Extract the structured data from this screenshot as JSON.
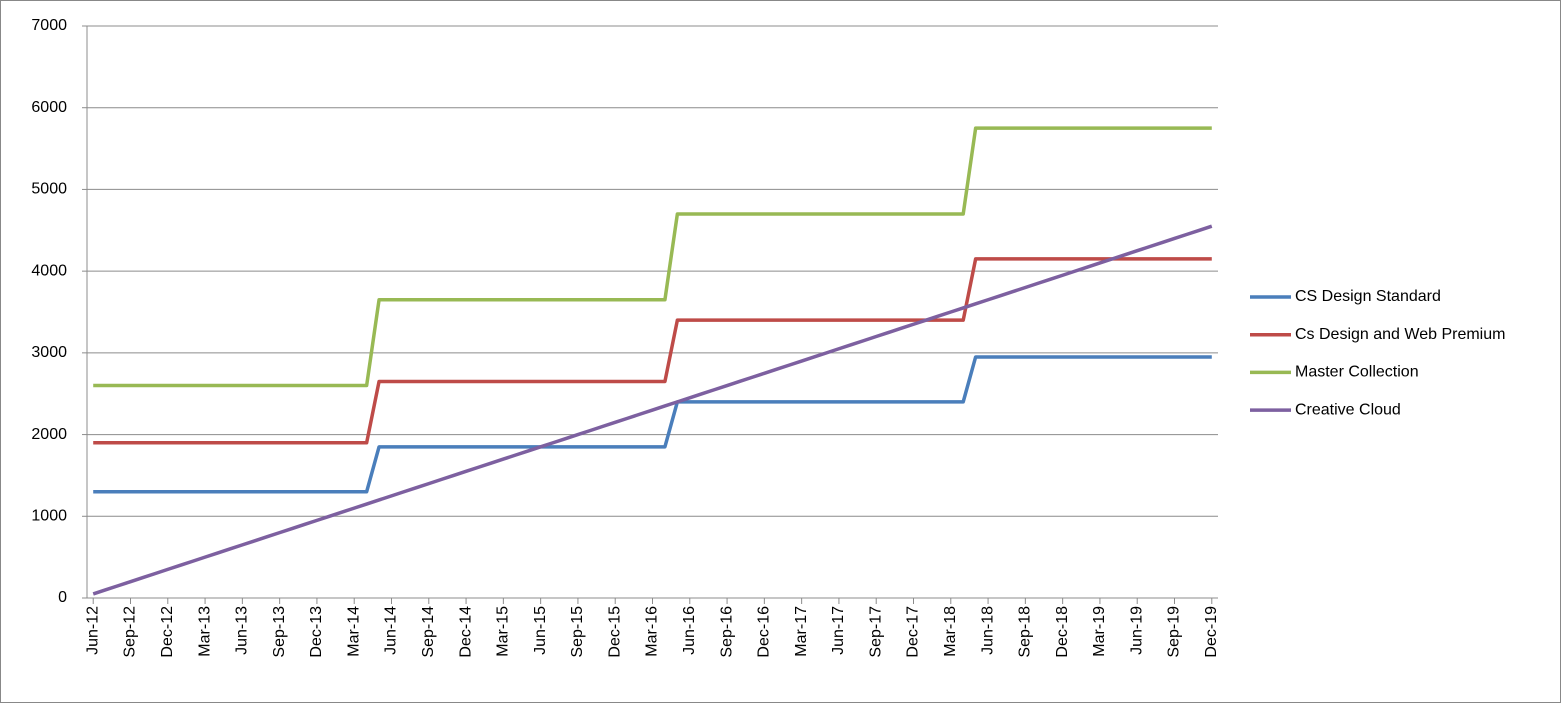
{
  "chart_data": {
    "type": "line",
    "categories": [
      "Jun-12",
      null,
      null,
      "Sep-12",
      null,
      null,
      "Dec-12",
      null,
      null,
      "Mar-13",
      null,
      null,
      "Jun-13",
      null,
      null,
      "Sep-13",
      null,
      null,
      "Dec-13",
      null,
      null,
      "Mar-14",
      null,
      null,
      "Jun-14",
      null,
      null,
      "Sep-14",
      null,
      null,
      "Dec-14",
      null,
      null,
      "Mar-15",
      null,
      null,
      "Jun-15",
      null,
      null,
      "Sep-15",
      null,
      null,
      "Dec-15",
      null,
      null,
      "Mar-16",
      null,
      null,
      "Jun-16",
      null,
      null,
      "Sep-16",
      null,
      null,
      "Dec-16",
      null,
      null,
      "Mar-17",
      null,
      null,
      "Jun-17",
      null,
      null,
      "Sep-17",
      null,
      null,
      "Dec-17",
      null,
      null,
      "Mar-18",
      null,
      null,
      "Jun-18",
      null,
      null,
      "Sep-18",
      null,
      null,
      "Dec-18",
      null,
      null,
      "Mar-19",
      null,
      null,
      "Jun-19",
      null,
      null,
      "Sep-19",
      null,
      null,
      "Dec-19"
    ],
    "series": [
      {
        "name": "CS Design Standard",
        "color": "#4a7ebb",
        "values": [
          1300,
          1300,
          1300,
          1300,
          1300,
          1300,
          1300,
          1300,
          1300,
          1300,
          1300,
          1300,
          1300,
          1300,
          1300,
          1300,
          1300,
          1300,
          1300,
          1300,
          1300,
          1300,
          1300,
          1850,
          1850,
          1850,
          1850,
          1850,
          1850,
          1850,
          1850,
          1850,
          1850,
          1850,
          1850,
          1850,
          1850,
          1850,
          1850,
          1850,
          1850,
          1850,
          1850,
          1850,
          1850,
          1850,
          1850,
          2400,
          2400,
          2400,
          2400,
          2400,
          2400,
          2400,
          2400,
          2400,
          2400,
          2400,
          2400,
          2400,
          2400,
          2400,
          2400,
          2400,
          2400,
          2400,
          2400,
          2400,
          2400,
          2400,
          2400,
          2950,
          2950,
          2950,
          2950,
          2950,
          2950,
          2950,
          2950,
          2950,
          2950,
          2950,
          2950,
          2950,
          2950,
          2950,
          2950,
          2950,
          2950,
          2950,
          2950
        ]
      },
      {
        "name": "Cs Design and Web Premium",
        "color": "#be4b48",
        "values": [
          1900,
          1900,
          1900,
          1900,
          1900,
          1900,
          1900,
          1900,
          1900,
          1900,
          1900,
          1900,
          1900,
          1900,
          1900,
          1900,
          1900,
          1900,
          1900,
          1900,
          1900,
          1900,
          1900,
          2650,
          2650,
          2650,
          2650,
          2650,
          2650,
          2650,
          2650,
          2650,
          2650,
          2650,
          2650,
          2650,
          2650,
          2650,
          2650,
          2650,
          2650,
          2650,
          2650,
          2650,
          2650,
          2650,
          2650,
          3400,
          3400,
          3400,
          3400,
          3400,
          3400,
          3400,
          3400,
          3400,
          3400,
          3400,
          3400,
          3400,
          3400,
          3400,
          3400,
          3400,
          3400,
          3400,
          3400,
          3400,
          3400,
          3400,
          3400,
          4150,
          4150,
          4150,
          4150,
          4150,
          4150,
          4150,
          4150,
          4150,
          4150,
          4150,
          4150,
          4150,
          4150,
          4150,
          4150,
          4150,
          4150,
          4150,
          4150
        ]
      },
      {
        "name": "Master Collection",
        "color": "#98b954",
        "values": [
          2600,
          2600,
          2600,
          2600,
          2600,
          2600,
          2600,
          2600,
          2600,
          2600,
          2600,
          2600,
          2600,
          2600,
          2600,
          2600,
          2600,
          2600,
          2600,
          2600,
          2600,
          2600,
          2600,
          3650,
          3650,
          3650,
          3650,
          3650,
          3650,
          3650,
          3650,
          3650,
          3650,
          3650,
          3650,
          3650,
          3650,
          3650,
          3650,
          3650,
          3650,
          3650,
          3650,
          3650,
          3650,
          3650,
          3650,
          4700,
          4700,
          4700,
          4700,
          4700,
          4700,
          4700,
          4700,
          4700,
          4700,
          4700,
          4700,
          4700,
          4700,
          4700,
          4700,
          4700,
          4700,
          4700,
          4700,
          4700,
          4700,
          4700,
          4700,
          5750,
          5750,
          5750,
          5750,
          5750,
          5750,
          5750,
          5750,
          5750,
          5750,
          5750,
          5750,
          5750,
          5750,
          5750,
          5750,
          5750,
          5750,
          5750,
          5750
        ]
      },
      {
        "name": "Creative Cloud",
        "color": "#7d60a0",
        "values": [
          50,
          100,
          150,
          200,
          250,
          300,
          350,
          400,
          450,
          500,
          550,
          600,
          650,
          700,
          750,
          800,
          850,
          900,
          950,
          1000,
          1050,
          1100,
          1150,
          1200,
          1250,
          1300,
          1350,
          1400,
          1450,
          1500,
          1550,
          1600,
          1650,
          1700,
          1750,
          1800,
          1850,
          1900,
          1950,
          2000,
          2050,
          2100,
          2150,
          2200,
          2250,
          2300,
          2350,
          2400,
          2450,
          2500,
          2550,
          2600,
          2650,
          2700,
          2750,
          2800,
          2850,
          2900,
          2950,
          3000,
          3050,
          3100,
          3150,
          3200,
          3250,
          3300,
          3350,
          3400,
          3450,
          3500,
          3550,
          3600,
          3650,
          3700,
          3750,
          3800,
          3850,
          3900,
          3950,
          4000,
          4050,
          4100,
          4150,
          4200,
          4250,
          4300,
          4350,
          4400,
          4450,
          4500,
          4550
        ]
      }
    ],
    "ylim": [
      0,
      7000
    ],
    "yticks": [
      0,
      1000,
      2000,
      3000,
      4000,
      5000,
      6000,
      7000
    ],
    "grid": true,
    "legend": "right"
  }
}
